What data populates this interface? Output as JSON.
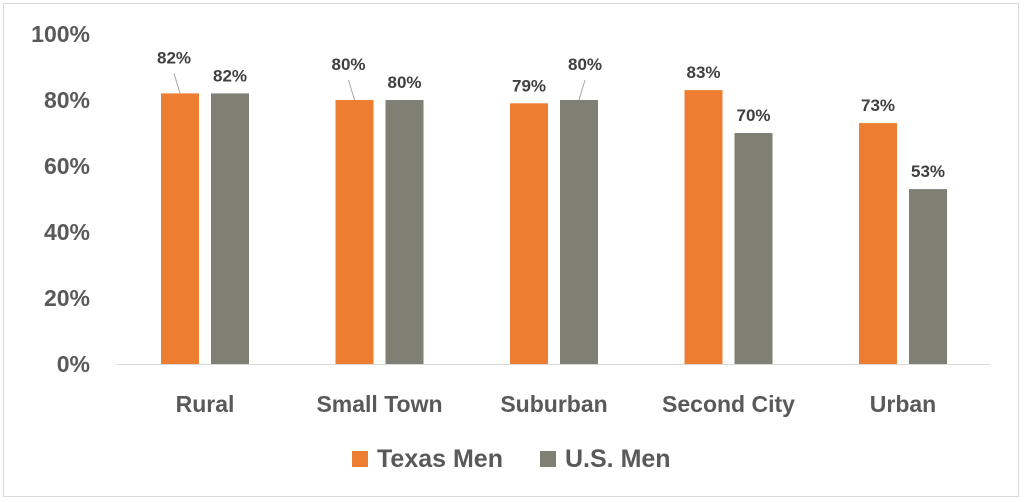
{
  "chart_data": {
    "type": "bar",
    "categories": [
      "Rural",
      "Small Town",
      "Suburban",
      "Second City",
      "Urban"
    ],
    "series": [
      {
        "name": "Texas Men",
        "color": "#ed7d31",
        "values": [
          82,
          80,
          79,
          83,
          73
        ],
        "labels": [
          "82%",
          "80%",
          "79%",
          "83%",
          "73%"
        ]
      },
      {
        "name": "U.S. Men",
        "color": "#7f7f74",
        "values": [
          82,
          80,
          80,
          70,
          53
        ],
        "labels": [
          "82%",
          "80%",
          "80%",
          "70%",
          "53%"
        ]
      }
    ],
    "ylim": [
      0,
      100
    ],
    "yticks": [
      "0%",
      "20%",
      "40%",
      "60%",
      "80%",
      "100%"
    ],
    "grid": false,
    "legend": "bottom",
    "title": "",
    "xlabel": "",
    "ylabel": ""
  }
}
